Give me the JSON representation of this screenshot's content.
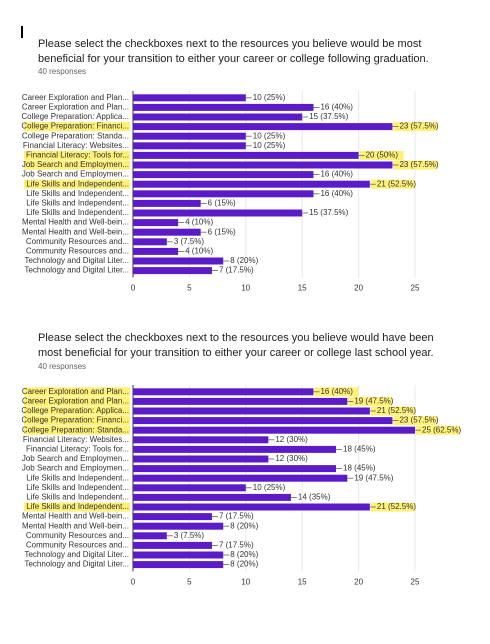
{
  "chart_data": [
    {
      "type": "bar",
      "orientation": "horizontal",
      "title": "Please select the checkboxes next to the resources you believe would be most beneficial for your transition to either your career or college following graduation.",
      "subtitle": "40 responses",
      "categories": [
        "Career Exploration and Plan...",
        "Career Exploration and Plan...",
        "College Preparation: Applica...",
        "College Preparation: Financi...",
        "College Preparation: Standa...",
        "Financial Literacy: Websites...",
        "Financial Literacy: Tools for...",
        "Job Search and Employmen...",
        "Job Search and Employmen...",
        "Life Skills and Independent...",
        "Life Skills and Independent...",
        "Life Skills and Independent...",
        "Life Skills and Independent...",
        "Mental Health and Well-bein...",
        "Mental Health and Well-bein...",
        "Community Resources and...",
        "Community Resources and...",
        "Technology and Digital Liter...",
        "Technology and Digital Liter..."
      ],
      "values": [
        10,
        16,
        15,
        23,
        10,
        10,
        20,
        23,
        16,
        21,
        16,
        6,
        15,
        4,
        6,
        3,
        4,
        8,
        7
      ],
      "value_labels": [
        "10 (25%)",
        "16 (40%)",
        "15 (37.5%)",
        "23 (57.5%)",
        "10 (25%)",
        "10 (25%)",
        "20 (50%)",
        "23 (57.5%)",
        "16 (40%)",
        "21 (52.5%)",
        "16 (40%)",
        "6 (15%)",
        "15 (37.5%)",
        "4 (10%)",
        "6 (15%)",
        "3 (7.5%)",
        "4 (10%)",
        "8 (20%)",
        "7 (17.5%)"
      ],
      "highlight": [
        false,
        false,
        false,
        true,
        false,
        false,
        true,
        true,
        false,
        true,
        false,
        false,
        false,
        false,
        false,
        false,
        false,
        false,
        false
      ],
      "color": "#5b1cc7",
      "highlight_color": "#fff176",
      "xlim": [
        0,
        25
      ],
      "xticks": [
        0,
        5,
        10,
        15,
        20,
        25
      ],
      "grid": true
    },
    {
      "type": "bar",
      "orientation": "horizontal",
      "title": "Please select the checkboxes next to the resources you believe would have been most beneficial for your transition to either your career or college last school year.",
      "subtitle": "40 responses",
      "categories": [
        "Career Exploration and Plan...",
        "Career Exploration and Plan...",
        "College Preparation: Applica...",
        "College Preparation: Financi...",
        "College Preparation: Standa...",
        "Financial Literacy: Websites...",
        "Financial Literacy: Tools for...",
        "Job Search and Employmen...",
        "Job Search and Employmen...",
        "Life Skills and Independent...",
        "Life Skills and Independent...",
        "Life Skills and Independent...",
        "Life Skills and Independent...",
        "Mental Health and Well-bein...",
        "Mental Health and Well-bein...",
        "Community Resources and...",
        "Community Resources and...",
        "Technology and Digital Liter...",
        "Technology and Digital Liter..."
      ],
      "values": [
        16,
        19,
        21,
        23,
        25,
        12,
        18,
        12,
        18,
        19,
        10,
        14,
        21,
        7,
        8,
        3,
        7,
        8,
        8
      ],
      "value_labels": [
        "16 (40%)",
        "19 (47.5%)",
        "21 (52.5%)",
        "23 (57.5%)",
        "25 (62.5%)",
        "12 (30%)",
        "18 (45%)",
        "12 (30%)",
        "18 (45%)",
        "19 (47.5%)",
        "10 (25%)",
        "14 (35%)",
        "21 (52.5%)",
        "7 (17.5%)",
        "8 (20%)",
        "3 (7.5%)",
        "7 (17.5%)",
        "8 (20%)",
        "8 (20%)"
      ],
      "highlight": [
        true,
        true,
        true,
        true,
        true,
        false,
        false,
        false,
        false,
        false,
        false,
        false,
        true,
        false,
        false,
        false,
        false,
        false,
        false
      ],
      "color": "#5b1cc7",
      "highlight_color": "#fff176",
      "xlim": [
        0,
        25
      ],
      "xticks": [
        0,
        5,
        10,
        15,
        20,
        25
      ],
      "grid": true
    }
  ]
}
